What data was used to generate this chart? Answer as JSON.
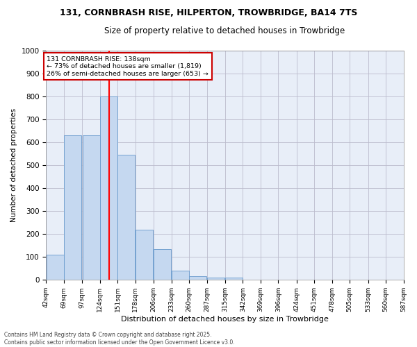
{
  "title_line1": "131, CORNBRASH RISE, HILPERTON, TROWBRIDGE, BA14 7TS",
  "title_line2": "Size of property relative to detached houses in Trowbridge",
  "xlabel": "Distribution of detached houses by size in Trowbridge",
  "ylabel": "Number of detached properties",
  "bin_edges": [
    42,
    69,
    97,
    124,
    151,
    178,
    206,
    233,
    260,
    287,
    315,
    342,
    369,
    396,
    424,
    451,
    478,
    505,
    533,
    560,
    587
  ],
  "bin_labels": [
    "42sqm",
    "69sqm",
    "97sqm",
    "124sqm",
    "151sqm",
    "178sqm",
    "206sqm",
    "233sqm",
    "260sqm",
    "287sqm",
    "315sqm",
    "342sqm",
    "369sqm",
    "396sqm",
    "424sqm",
    "451sqm",
    "478sqm",
    "505sqm",
    "533sqm",
    "560sqm",
    "587sqm"
  ],
  "bar_heights": [
    110,
    630,
    630,
    800,
    545,
    220,
    135,
    40,
    15,
    10,
    10,
    0,
    0,
    0,
    0,
    0,
    0,
    0,
    0,
    0
  ],
  "bar_color": "#c5d8f0",
  "bar_edge_color": "#6699cc",
  "red_line_x": 138,
  "ylim": [
    0,
    1000
  ],
  "yticks": [
    0,
    100,
    200,
    300,
    400,
    500,
    600,
    700,
    800,
    900,
    1000
  ],
  "annotation_title": "131 CORNBRASH RISE: 138sqm",
  "annotation_line1": "← 73% of detached houses are smaller (1,819)",
  "annotation_line2": "26% of semi-detached houses are larger (653) →",
  "annotation_box_color": "#ffffff",
  "annotation_box_edge": "#cc0000",
  "grid_color": "#bbbbcc",
  "bg_color": "#e8eef8",
  "footer_line1": "Contains HM Land Registry data © Crown copyright and database right 2025.",
  "footer_line2": "Contains public sector information licensed under the Open Government Licence v3.0."
}
